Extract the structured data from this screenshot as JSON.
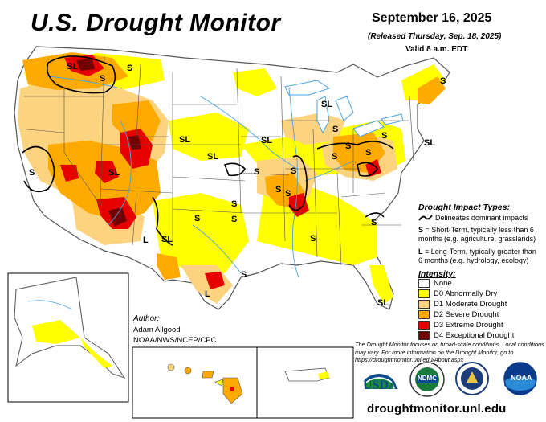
{
  "header": {
    "title": "U.S. Drought Monitor",
    "date": "September 16, 2025",
    "released": "(Released Thursday, Sep. 18, 2025)",
    "valid": "Valid 8 a.m. EDT"
  },
  "impact_legend": {
    "title": "Drought Impact Types:",
    "delineates": "Delineates dominant impacts",
    "s_label": "S",
    "s_text": "= Short-Term, typically less than 6 months (e.g. agriculture, grasslands)",
    "l_label": "L",
    "l_text": "= Long-Term, typically greater than 6 months (e.g. hydrology, ecology)"
  },
  "intensity_legend": {
    "title": "Intensity:",
    "items": [
      {
        "label": "None",
        "color": "#ffffff"
      },
      {
        "label": "D0 Abnormally Dry",
        "color": "#ffff00"
      },
      {
        "label": "D1 Moderate Drought",
        "color": "#fcd37f"
      },
      {
        "label": "D2 Severe Drought",
        "color": "#ffaa00"
      },
      {
        "label": "D3 Extreme Drought",
        "color": "#e60000"
      },
      {
        "label": "D4 Exceptional Drought",
        "color": "#730000"
      }
    ]
  },
  "author": {
    "title": "Author:",
    "name": "Adam Allgood",
    "org": "NOAA/NWS/NCEP/CPC"
  },
  "note": "The Drought Monitor focuses on broad-scale conditions. Local conditions may vary. For more information on the Drought Monitor, go to https://droughtmonitor.unl.edu/About.aspx",
  "footer_url": "droughtmonitor.unl.edu",
  "logos": {
    "usda": "USDA",
    "ndmc": "NDMC",
    "noaa": "NOAA"
  },
  "map_labels": {
    "s": "S",
    "l": "L",
    "sl": "SL"
  },
  "colors": {
    "none": "#ffffff",
    "d0": "#ffff00",
    "d1": "#fcd37f",
    "d2": "#ffaa00",
    "d3": "#e60000",
    "d4": "#730000",
    "water": "#4aa3df",
    "border": "#555555"
  }
}
